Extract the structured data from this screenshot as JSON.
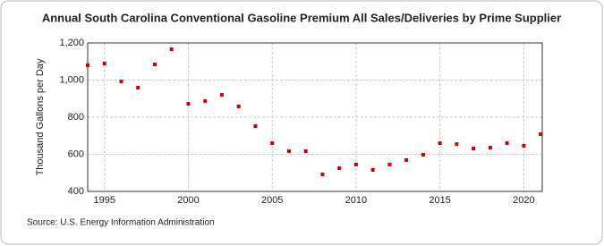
{
  "chart_data": {
    "type": "scatter",
    "title": "Annual South Carolina Conventional Gasoline Premium All Sales/Deliveries by Prime Supplier",
    "y_label": "Thousand Gallons per Day",
    "source": "Source: U.S. Energy Information Administration",
    "x": [
      1994,
      1995,
      1996,
      1997,
      1998,
      1999,
      2000,
      2001,
      2002,
      2003,
      2004,
      2005,
      2006,
      2007,
      2008,
      2009,
      2010,
      2011,
      2012,
      2013,
      2014,
      2015,
      2016,
      2017,
      2018,
      2019,
      2020,
      2021
    ],
    "values": [
      1080,
      1089,
      993,
      959,
      1084,
      1166,
      872,
      887,
      920,
      858,
      752,
      660,
      617,
      617,
      492,
      525,
      545,
      516,
      545,
      569,
      598,
      660,
      655,
      631,
      636,
      660,
      646,
      708
    ],
    "color": "#cc0000",
    "xlim": [
      1994,
      2021.1
    ],
    "xticks": [
      1995,
      2000,
      2005,
      2010,
      2015,
      2020
    ],
    "ylim": [
      400,
      1200
    ],
    "yticks": [
      400,
      600,
      800,
      {
        "value": 1000,
        "label": "1,000"
      },
      {
        "value": 1200,
        "label": "1,200"
      }
    ],
    "grid": true
  }
}
